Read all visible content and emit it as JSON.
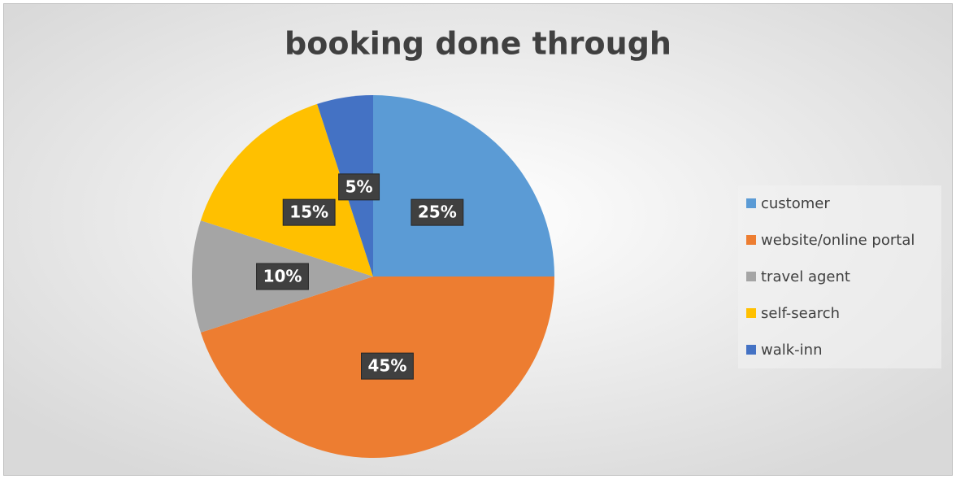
{
  "chart_data": {
    "type": "pie",
    "title": "booking done through",
    "categories": [
      "customer",
      "website/online portal",
      "travel agent",
      "self-search",
      "walk-inn"
    ],
    "values": [
      25,
      45,
      10,
      15,
      5
    ],
    "value_labels": [
      "25%",
      "45%",
      "10%",
      "15%",
      "5%"
    ],
    "colors": [
      "#5b9bd5",
      "#ed7d31",
      "#a5a5a5",
      "#ffc000",
      "#4472c4"
    ],
    "legend": "right"
  }
}
